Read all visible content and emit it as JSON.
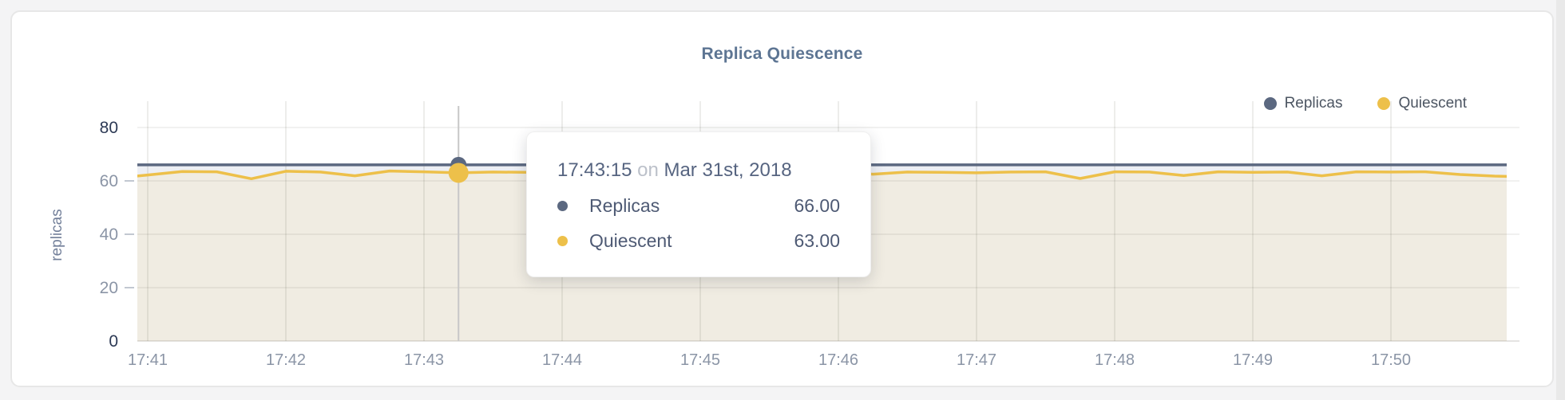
{
  "page": {
    "title": "Replica Quiescence"
  },
  "legend": {
    "items": [
      {
        "label": "Replicas",
        "color": "#5b6880"
      },
      {
        "label": "Quiescent",
        "color": "#edc04a"
      }
    ]
  },
  "tooltip": {
    "time": "17:43:15",
    "connector": "on",
    "date": "Mar 31st, 2018",
    "rows": [
      {
        "label": "Replicas",
        "value": "66.00",
        "color": "#5b6880"
      },
      {
        "label": "Quiescent",
        "value": "63.00",
        "color": "#edc04a"
      }
    ]
  },
  "chart_data": {
    "type": "area",
    "title": "Replica Quiescence",
    "xlabel": "",
    "ylabel": "replicas",
    "ylim": [
      0,
      80
    ],
    "grid": true,
    "legend_position": "top-right",
    "x_unit": "seconds since 17:41:00",
    "x": [
      -15,
      0,
      15,
      30,
      45,
      60,
      75,
      90,
      105,
      120,
      135,
      150,
      165,
      180,
      195,
      210,
      225,
      240,
      255,
      270,
      285,
      300,
      315,
      330,
      345,
      360,
      375,
      390,
      405,
      420,
      435,
      450,
      465,
      480,
      495,
      510,
      525,
      540,
      555,
      570,
      585,
      600
    ],
    "series": [
      {
        "name": "Replicas",
        "color": "#5b6880",
        "fill": "#edeff4",
        "values": [
          66,
          66,
          66,
          66,
          66,
          66,
          66,
          66,
          66,
          66,
          66,
          66,
          66,
          66,
          66,
          66,
          66,
          66,
          66,
          66,
          66,
          66,
          66,
          66,
          66,
          66,
          66,
          66,
          66,
          66,
          66,
          66,
          66,
          66,
          66,
          66,
          66,
          66,
          66,
          66,
          66,
          66
        ]
      },
      {
        "name": "Quiescent",
        "color": "#edc04a",
        "fill": "#f0ece2",
        "values": [
          61.0,
          62.2,
          63.5,
          63.4,
          60.8,
          63.6,
          63.3,
          61.9,
          63.7,
          63.4,
          63.0,
          63.3,
          63.2,
          63.6,
          63.1,
          62.4,
          63.3,
          63.2,
          63.5,
          62.7,
          63.3,
          63.4,
          62.5,
          63.3,
          63.2,
          63.0,
          63.3,
          63.4,
          60.9,
          63.4,
          63.3,
          62.0,
          63.4,
          63.2,
          63.3,
          61.9,
          63.4,
          63.3,
          63.4,
          62.4,
          61.8,
          61.5
        ]
      }
    ],
    "y_ticks": [
      {
        "label": "0",
        "value": 0,
        "emphasis": true
      },
      {
        "label": "20",
        "value": 20,
        "emphasis": false
      },
      {
        "label": "40",
        "value": 40,
        "emphasis": false
      },
      {
        "label": "60",
        "value": 60,
        "emphasis": false
      },
      {
        "label": "80",
        "value": 80,
        "emphasis": true
      }
    ],
    "x_ticks": [
      {
        "label": "17:41",
        "seconds": 0
      },
      {
        "label": "17:42",
        "seconds": 60
      },
      {
        "label": "17:43",
        "seconds": 120
      },
      {
        "label": "17:44",
        "seconds": 180
      },
      {
        "label": "17:45",
        "seconds": 240
      },
      {
        "label": "17:46",
        "seconds": 300
      },
      {
        "label": "17:47",
        "seconds": 360
      },
      {
        "label": "17:48",
        "seconds": 420
      },
      {
        "label": "17:49",
        "seconds": 480
      },
      {
        "label": "17:50",
        "seconds": 540
      }
    ],
    "hover": {
      "x_seconds": 135,
      "time": "17:43:15",
      "values": {
        "Replicas": 66,
        "Quiescent": 63
      }
    }
  },
  "colors": {
    "tick": "#8b95a6",
    "tick_emphasis": "#2d3a55",
    "crosshair": "#c7c7c7",
    "grid": "rgba(80,75,58,0.10)",
    "grid_h": "rgba(80,75,58,0.08)",
    "baseline": "rgba(80,75,58,0.15)",
    "tick_dash": "#c2c8d1"
  }
}
